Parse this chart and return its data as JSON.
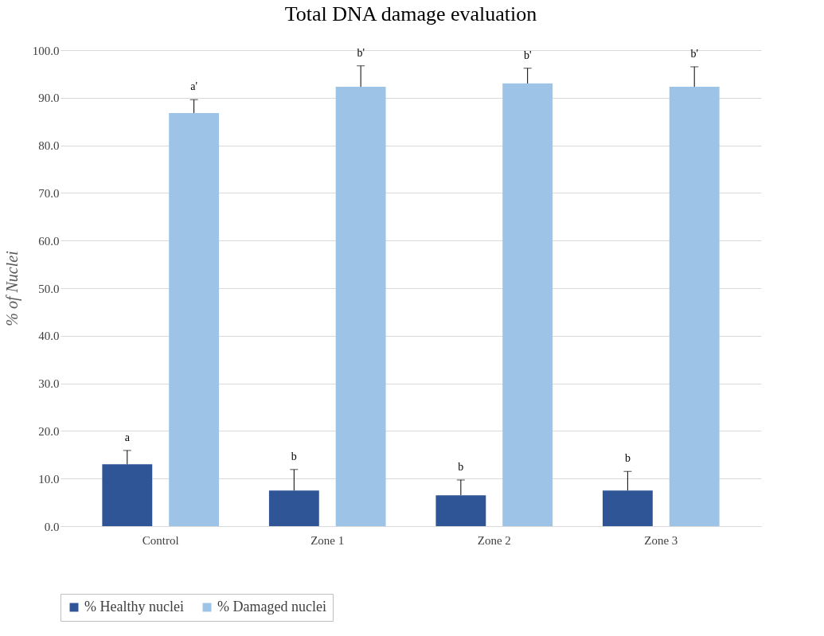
{
  "chart_data": {
    "type": "bar",
    "title": "Total DNA damage evaluation",
    "ylabel": "% of Nuclei",
    "categories": [
      "Control",
      "Zone 1",
      "Zone 2",
      "Zone 3"
    ],
    "series": [
      {
        "name": "% Healthy nuclei",
        "color": "#2f5597",
        "values": [
          13.0,
          7.5,
          6.5,
          7.5
        ],
        "errors": [
          [
            13.0,
            15.9
          ],
          [
            7.5,
            11.9
          ],
          [
            6.5,
            9.7
          ],
          [
            7.5,
            11.5
          ]
        ],
        "value_labels": [
          "a",
          "b",
          "b",
          "b"
        ]
      },
      {
        "name": "% Damaged nuclei",
        "color": "#9dc3e6",
        "values": [
          86.8,
          92.3,
          93.0,
          92.3
        ],
        "errors": [
          [
            86.8,
            89.6
          ],
          [
            92.3,
            96.7
          ],
          [
            93.0,
            96.2
          ],
          [
            92.3,
            96.5
          ]
        ],
        "value_labels": [
          "a'",
          "b'",
          "b'",
          "b'"
        ]
      }
    ],
    "ylim": [
      0,
      100
    ],
    "yticks": [
      {
        "value": 0,
        "label": "0.0"
      },
      {
        "value": 10,
        "label": "10.0"
      },
      {
        "value": 20,
        "label": "20.0"
      },
      {
        "value": 30,
        "label": "30.0"
      },
      {
        "value": 40,
        "label": "40.0"
      },
      {
        "value": 50,
        "label": "50.0"
      },
      {
        "value": 60,
        "label": "60.0"
      },
      {
        "value": 70,
        "label": "70.0"
      },
      {
        "value": 80,
        "label": "80.0"
      },
      {
        "value": 90,
        "label": "90.0"
      },
      {
        "value": 100,
        "label": "100.0"
      }
    ],
    "grid": "y",
    "legend": "bottom"
  }
}
